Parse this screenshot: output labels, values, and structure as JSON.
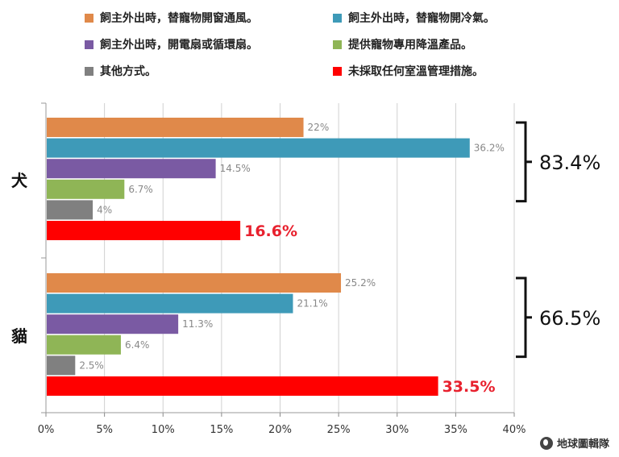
{
  "colors": {
    "s1": "#E0894A",
    "s2": "#3E9AB8",
    "s3": "#7A5AA3",
    "s4": "#8FB556",
    "s5": "#808080",
    "s6": "#FF0000",
    "highlight": "#E8212E"
  },
  "legend": [
    {
      "label": "飼主外出時，替寵物開窗通風。"
    },
    {
      "label": "飼主外出時，替寵物開冷氣。"
    },
    {
      "label": "飼主外出時，開電扇或循環扇。"
    },
    {
      "label": "提供寵物專用降溫產品。"
    },
    {
      "label": "其他方式。"
    },
    {
      "label": "未採取任何室溫管理措施。"
    }
  ],
  "chart_data": {
    "type": "bar",
    "orientation": "horizontal",
    "categories": [
      "犬",
      "貓"
    ],
    "series": [
      {
        "name": "飼主外出時，替寵物開窗通風。",
        "values": [
          22,
          25.2
        ],
        "labels": [
          "22%",
          "25.2%"
        ]
      },
      {
        "name": "飼主外出時，替寵物開冷氣。",
        "values": [
          36.2,
          21.1
        ],
        "labels": [
          "36.2%",
          "21.1%"
        ]
      },
      {
        "name": "飼主外出時，開電扇或循環扇。",
        "values": [
          14.5,
          11.3
        ],
        "labels": [
          "14.5%",
          "11.3%"
        ]
      },
      {
        "name": "提供寵物專用降溫產品。",
        "values": [
          6.7,
          6.4
        ],
        "labels": [
          "6.7%",
          "6.4%"
        ]
      },
      {
        "name": "其他方式。",
        "values": [
          4,
          2.5
        ],
        "labels": [
          "4%",
          "2.5%"
        ]
      },
      {
        "name": "未採取任何室溫管理措施。",
        "values": [
          16.6,
          33.5
        ],
        "labels": [
          "16.6%",
          "33.5%"
        ]
      }
    ],
    "group_totals": [
      "83.4%",
      "66.5%"
    ],
    "x_ticks": [
      "0%",
      "5%",
      "10%",
      "15%",
      "20%",
      "25%",
      "30%",
      "35%",
      "40%"
    ],
    "xlim": [
      0,
      40
    ],
    "grid": true,
    "legend_position": "top"
  },
  "watermark": "地球圖輯隊"
}
